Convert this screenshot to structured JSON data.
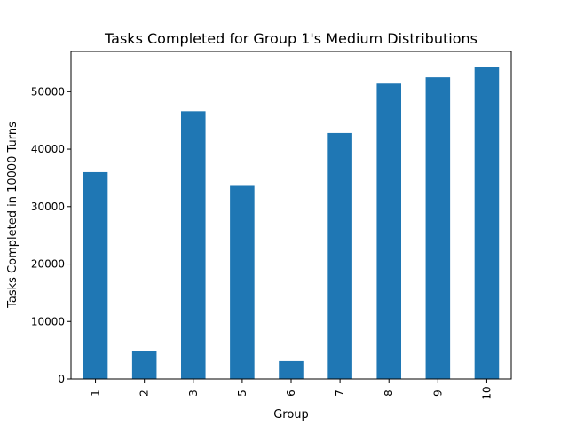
{
  "chart_data": {
    "type": "bar",
    "title": "Tasks Completed for Group 1's Medium Distributions",
    "xlabel": "Group",
    "ylabel": "Tasks Completed in 10000 Turns",
    "categories": [
      "1",
      "2",
      "3",
      "5",
      "6",
      "7",
      "8",
      "9",
      "10"
    ],
    "values": [
      36000,
      4800,
      46600,
      33600,
      3100,
      42800,
      51400,
      52500,
      54300
    ],
    "ylim": [
      0,
      57000
    ],
    "yticks": [
      0,
      10000,
      20000,
      30000,
      40000,
      50000
    ],
    "ytick_labels": [
      "0",
      "10000",
      "20000",
      "30000",
      "40000",
      "50000"
    ],
    "grid": false,
    "legend": "none",
    "bar_color": "#1f77b4"
  }
}
